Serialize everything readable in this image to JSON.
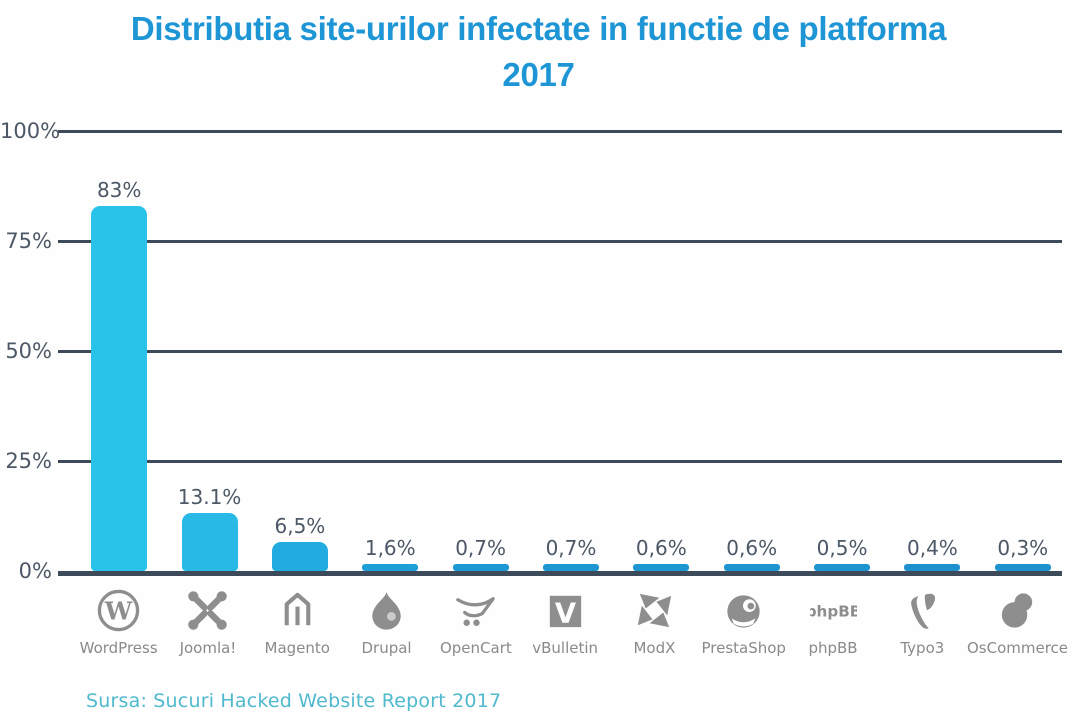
{
  "title": {
    "line1": "Distributia site-urilor infectate in functie de platforma",
    "line2": "2017"
  },
  "source": "Sursa: Sucuri Hacked Website Report 2017",
  "chart_data": {
    "type": "bar",
    "title": "Distributia site-urilor infectate in functie de platforma 2017",
    "xlabel": "",
    "ylabel": "",
    "ylim": [
      0,
      100
    ],
    "yticks": [
      0,
      25,
      50,
      75,
      100
    ],
    "ytick_labels": [
      "0%",
      "25%",
      "50%",
      "75%",
      "100%"
    ],
    "grid": true,
    "legend": false,
    "categories": [
      "WordPress",
      "Joomla!",
      "Magento",
      "Drupal",
      "OpenCart",
      "vBulletin",
      "ModX",
      "PrestaShop",
      "phpBB",
      "Typo3",
      "OsCommerce"
    ],
    "values": [
      83,
      13.1,
      6.5,
      1.6,
      0.7,
      0.7,
      0.6,
      0.6,
      0.5,
      0.4,
      0.3
    ],
    "value_labels": [
      "83%",
      "13.1%",
      "6,5%",
      "1,6%",
      "0,7%",
      "0,7%",
      "0,6%",
      "0,6%",
      "0,5%",
      "0,4%",
      "0,3%"
    ],
    "bar_colors": [
      "#29C3EA",
      "#29B9E6",
      "#21ABDF",
      "#1F9ED8",
      "#1E98D4",
      "#1E96D2",
      "#1E96D2",
      "#1E94D0",
      "#1E94D0",
      "#1E92CE",
      "#1E92CE"
    ],
    "icons": [
      "wordpress-icon",
      "joomla-icon",
      "magento-icon",
      "drupal-icon",
      "opencart-icon",
      "vbulletin-icon",
      "modx-icon",
      "prestashop-icon",
      "phpbb-icon",
      "typo3-icon",
      "oscommerce-icon"
    ]
  },
  "colors": {
    "title_text": "#1E96D6",
    "axis": "#3C4A59",
    "tick_text": "#4C5866",
    "value_text": "#4C5866",
    "category_text": "#8A8A8A",
    "icon": "#8E8E8E",
    "source_text": "#4FB9CE",
    "background": "#FEFEFE"
  }
}
